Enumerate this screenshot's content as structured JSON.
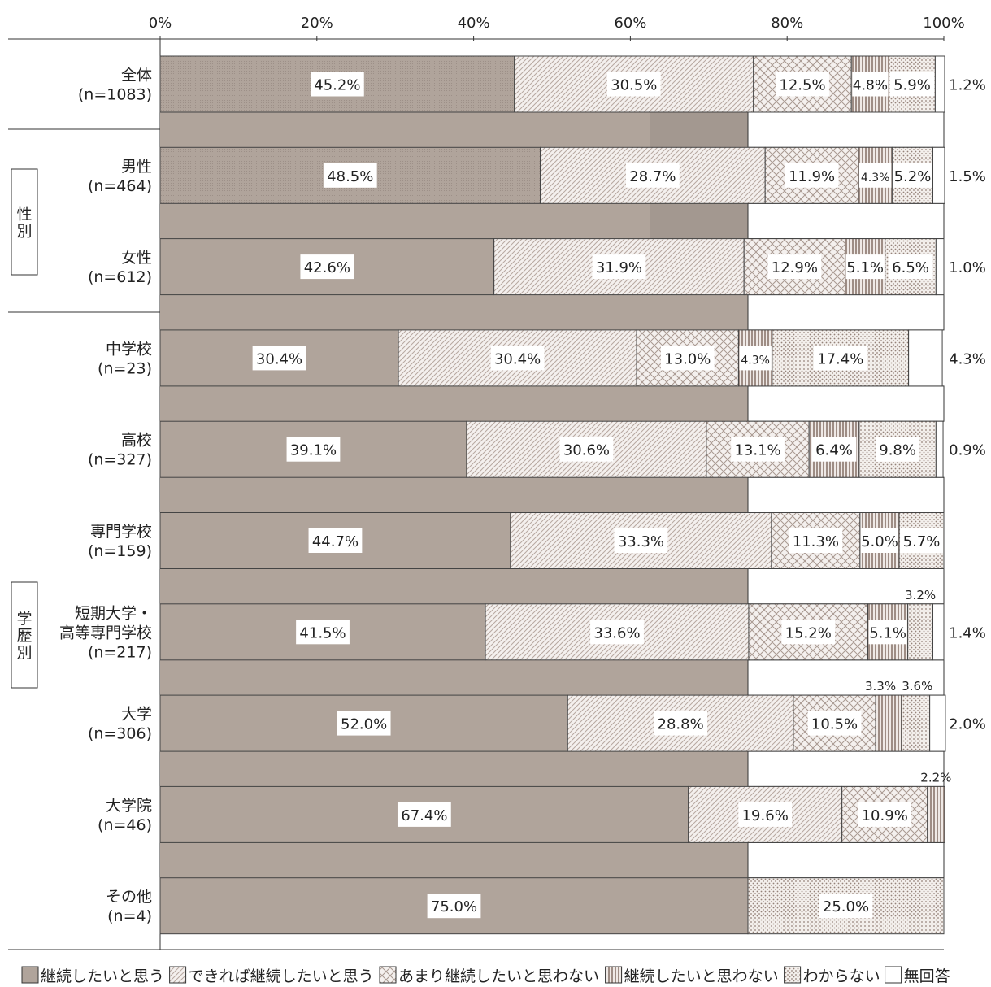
{
  "chart_data": {
    "type": "bar",
    "orientation": "horizontal",
    "stacked": true,
    "xlim": [
      0,
      100
    ],
    "x_ticks": [
      "0%",
      "20%",
      "40%",
      "60%",
      "80%",
      "100%"
    ],
    "grid": false,
    "legend_position": "bottom",
    "groups": [
      {
        "label": "性別",
        "rows": [
          1,
          2
        ]
      },
      {
        "label": "学歴別",
        "rows": [
          3,
          4,
          5,
          6,
          7,
          8,
          9
        ]
      }
    ],
    "categories": [
      {
        "name": "全体",
        "n": "(n=1083)"
      },
      {
        "name": "男性",
        "n": "(n=464)"
      },
      {
        "name": "女性",
        "n": "(n=612)"
      },
      {
        "name": "中学校",
        "n": "(n=23)"
      },
      {
        "name": "高校",
        "n": "(n=327)"
      },
      {
        "name": "専門学校",
        "n": "(n=159)"
      },
      {
        "name": "短期大学・\n高等専門学校",
        "n": "(n=217)"
      },
      {
        "name": "大学",
        "n": "(n=306)"
      },
      {
        "name": "大学院",
        "n": "(n=46)"
      },
      {
        "name": "その他",
        "n": "(n=4)"
      }
    ],
    "series": [
      {
        "name": "継続したいと思う",
        "color": "#b0a49b",
        "pattern": "solid",
        "values": [
          45.2,
          48.5,
          42.6,
          30.4,
          39.1,
          44.7,
          41.5,
          52.0,
          67.4,
          75.0
        ]
      },
      {
        "name": "できれば継続したいと思う",
        "color": "#c8bbb3",
        "pattern": "diagonal",
        "values": [
          30.5,
          28.7,
          31.9,
          30.4,
          30.6,
          33.3,
          33.6,
          28.8,
          19.6,
          0
        ]
      },
      {
        "name": "あまり継続したいと思わない",
        "color": "#c8bbb3",
        "pattern": "crosshatch",
        "values": [
          12.5,
          11.9,
          12.9,
          13.0,
          13.1,
          11.3,
          15.2,
          10.5,
          10.9,
          0
        ]
      },
      {
        "name": "継続したいと思わない",
        "color": "#a3928a",
        "pattern": "vertical",
        "values": [
          4.8,
          4.3,
          5.1,
          4.3,
          6.4,
          5.0,
          5.1,
          3.3,
          2.2,
          0
        ]
      },
      {
        "name": "わからない",
        "color": "#b8aaa2",
        "pattern": "dots",
        "values": [
          5.9,
          5.2,
          6.5,
          17.4,
          9.8,
          5.7,
          3.2,
          3.6,
          0,
          25.0
        ]
      },
      {
        "name": "無回答",
        "color": "#ffffff",
        "pattern": "none",
        "values": [
          1.2,
          1.5,
          1.0,
          4.3,
          0.9,
          0,
          1.4,
          2.0,
          0,
          0
        ]
      }
    ],
    "labels": [
      [
        "45.2%",
        "30.5%",
        "12.5%",
        "4.8%",
        "5.9%",
        "1.2%"
      ],
      [
        "48.5%",
        "28.7%",
        "11.9%",
        "4.3%",
        "5.2%",
        "1.5%"
      ],
      [
        "42.6%",
        "31.9%",
        "12.9%",
        "5.1%",
        "6.5%",
        "1.0%"
      ],
      [
        "30.4%",
        "30.4%",
        "13.0%",
        "4.3%",
        "17.4%",
        "4.3%"
      ],
      [
        "39.1%",
        "30.6%",
        "13.1%",
        "6.4%",
        "9.8%",
        "0.9%"
      ],
      [
        "44.7%",
        "33.3%",
        "11.3%",
        "5.0%",
        "5.7%",
        ""
      ],
      [
        "41.5%",
        "33.6%",
        "15.2%",
        "5.1%",
        "3.2%",
        "1.4%"
      ],
      [
        "52.0%",
        "28.8%",
        "10.5%",
        "3.3%",
        "3.6%",
        "2.0%"
      ],
      [
        "67.4%",
        "19.6%",
        "10.9%",
        "2.2%",
        "",
        ""
      ],
      [
        "75.0%",
        "",
        "",
        "",
        "25.0%",
        ""
      ]
    ]
  }
}
